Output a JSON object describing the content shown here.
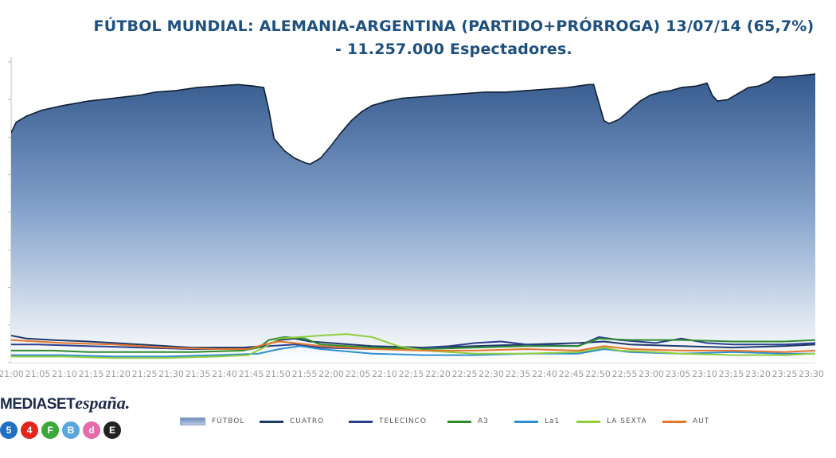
{
  "title_line1": "FÚTBOL MUNDIAL: ALEMANIA-ARGENTINA (PARTIDO+PRÓRROGA) 13/07/14 (65,7%)",
  "title_line2": "- 11.257.000 Espectadores.",
  "logo": {
    "part1": "MEDIASET",
    "part2": "españa",
    "dot": "."
  },
  "channel_icons": [
    {
      "name": "cuatro-channel-icon",
      "glyph": "5",
      "color": "#1f6fc2"
    },
    {
      "name": "telecinco-channel-icon",
      "glyph": "4",
      "color": "#e2261e"
    },
    {
      "name": "factoria-channel-icon",
      "glyph": "F",
      "color": "#3aa83a"
    },
    {
      "name": "boing-channel-icon",
      "glyph": "B",
      "color": "#5aa7dd"
    },
    {
      "name": "divinity-channel-icon",
      "glyph": "d",
      "color": "#e66aa8"
    },
    {
      "name": "energy-channel-icon",
      "glyph": "E",
      "color": "#222222"
    }
  ],
  "chart_data": {
    "type": "area",
    "title": "FÚTBOL MUNDIAL: ALEMANIA-ARGENTINA (PARTIDO+PRÓRROGA) 13/07/14 (65,7%) - 11.257.000 Espectadores.",
    "x_tick_labels": [
      "21:00",
      "21:05",
      "21:10",
      "21:15",
      "21:20",
      "21:25",
      "21:30",
      "21:35",
      "21:40",
      "21:45",
      "21:50",
      "21:55",
      "22:00",
      "22:05",
      "22:10",
      "22:15",
      "22:20",
      "22:25",
      "22:30",
      "22:35",
      "22:40",
      "22:45",
      "22:50",
      "22:55",
      "23:00",
      "23:05",
      "23:10",
      "23:15",
      "23:20",
      "23:25",
      "23:30"
    ],
    "x_range": [
      0,
      156
    ],
    "y_range": [
      0,
      20
    ],
    "y_tick_count": 9,
    "grid": false,
    "legend_position": "bottom",
    "series": [
      {
        "name": "FÚTBOL",
        "color": "#34598c",
        "style": "area",
        "points": [
          [
            0,
            15.3
          ],
          [
            1,
            16.0
          ],
          [
            3,
            16.4
          ],
          [
            6,
            16.8
          ],
          [
            10,
            17.1
          ],
          [
            15,
            17.4
          ],
          [
            20,
            17.6
          ],
          [
            25,
            17.8
          ],
          [
            28,
            18.0
          ],
          [
            32,
            18.1
          ],
          [
            36,
            18.3
          ],
          [
            40,
            18.4
          ],
          [
            44,
            18.5
          ],
          [
            47,
            18.4
          ],
          [
            49,
            18.3
          ],
          [
            50,
            16.8
          ],
          [
            51,
            14.9
          ],
          [
            53,
            14.1
          ],
          [
            55,
            13.6
          ],
          [
            57,
            13.3
          ],
          [
            58,
            13.2
          ],
          [
            60,
            13.6
          ],
          [
            62,
            14.4
          ],
          [
            64,
            15.3
          ],
          [
            66,
            16.1
          ],
          [
            68,
            16.7
          ],
          [
            70,
            17.1
          ],
          [
            73,
            17.4
          ],
          [
            76,
            17.6
          ],
          [
            80,
            17.7
          ],
          [
            84,
            17.8
          ],
          [
            88,
            17.9
          ],
          [
            92,
            18.0
          ],
          [
            96,
            18.0
          ],
          [
            100,
            18.1
          ],
          [
            104,
            18.2
          ],
          [
            108,
            18.3
          ],
          [
            112,
            18.5
          ],
          [
            113,
            18.5
          ],
          [
            114,
            17.3
          ],
          [
            115,
            16.1
          ],
          [
            116,
            15.9
          ],
          [
            118,
            16.2
          ],
          [
            120,
            16.8
          ],
          [
            122,
            17.4
          ],
          [
            124,
            17.8
          ],
          [
            126,
            18.0
          ],
          [
            128,
            18.1
          ],
          [
            130,
            18.3
          ],
          [
            133,
            18.4
          ],
          [
            135,
            18.6
          ],
          [
            136,
            17.8
          ],
          [
            137,
            17.4
          ],
          [
            139,
            17.5
          ],
          [
            141,
            17.9
          ],
          [
            143,
            18.3
          ],
          [
            145,
            18.4
          ],
          [
            147,
            18.7
          ],
          [
            148,
            19.0
          ],
          [
            150,
            19.0
          ],
          [
            153,
            19.1
          ],
          [
            156,
            19.2
          ]
        ]
      },
      {
        "name": "CUATRO",
        "color": "#1f3a6b",
        "style": "line",
        "points": [
          [
            0,
            1.8
          ],
          [
            3,
            1.6
          ],
          [
            8,
            1.5
          ],
          [
            15,
            1.4
          ],
          [
            25,
            1.2
          ],
          [
            35,
            1.0
          ],
          [
            45,
            1.0
          ],
          [
            49,
            1.1
          ],
          [
            52,
            1.5
          ],
          [
            55,
            1.6
          ],
          [
            58,
            1.4
          ],
          [
            62,
            1.3
          ],
          [
            70,
            1.1
          ],
          [
            80,
            1.0
          ],
          [
            90,
            1.1
          ],
          [
            100,
            1.2
          ],
          [
            110,
            1.3
          ],
          [
            115,
            1.4
          ],
          [
            120,
            1.2
          ],
          [
            130,
            1.1
          ],
          [
            140,
            1.0
          ],
          [
            150,
            1.1
          ],
          [
            156,
            1.2
          ]
        ]
      },
      {
        "name": "TELECINCO",
        "color": "#2b3f8f",
        "style": "line",
        "points": [
          [
            0,
            1.2
          ],
          [
            5,
            1.2
          ],
          [
            15,
            1.1
          ],
          [
            25,
            1.0
          ],
          [
            35,
            0.9
          ],
          [
            45,
            0.9
          ],
          [
            50,
            1.1
          ],
          [
            55,
            1.2
          ],
          [
            60,
            1.0
          ],
          [
            70,
            0.9
          ],
          [
            80,
            1.0
          ],
          [
            85,
            1.1
          ],
          [
            90,
            1.3
          ],
          [
            95,
            1.4
          ],
          [
            100,
            1.2
          ],
          [
            110,
            1.1
          ],
          [
            114,
            1.7
          ],
          [
            118,
            1.5
          ],
          [
            125,
            1.3
          ],
          [
            130,
            1.6
          ],
          [
            135,
            1.3
          ],
          [
            140,
            1.2
          ],
          [
            150,
            1.2
          ],
          [
            156,
            1.3
          ]
        ]
      },
      {
        "name": "A3",
        "color": "#2e8b2e",
        "style": "line",
        "points": [
          [
            0,
            0.8
          ],
          [
            8,
            0.8
          ],
          [
            15,
            0.7
          ],
          [
            25,
            0.7
          ],
          [
            35,
            0.7
          ],
          [
            45,
            0.8
          ],
          [
            48,
            1.0
          ],
          [
            50,
            1.5
          ],
          [
            53,
            1.7
          ],
          [
            57,
            1.6
          ],
          [
            60,
            1.2
          ],
          [
            70,
            1.0
          ],
          [
            80,
            0.9
          ],
          [
            90,
            1.0
          ],
          [
            100,
            1.1
          ],
          [
            110,
            1.1
          ],
          [
            114,
            1.6
          ],
          [
            120,
            1.5
          ],
          [
            130,
            1.5
          ],
          [
            140,
            1.4
          ],
          [
            150,
            1.4
          ],
          [
            156,
            1.5
          ]
        ]
      },
      {
        "name": "La1",
        "color": "#2e8fcf",
        "style": "line",
        "points": [
          [
            0,
            0.5
          ],
          [
            10,
            0.5
          ],
          [
            20,
            0.4
          ],
          [
            30,
            0.4
          ],
          [
            40,
            0.5
          ],
          [
            48,
            0.6
          ],
          [
            52,
            0.9
          ],
          [
            56,
            1.1
          ],
          [
            60,
            0.9
          ],
          [
            70,
            0.6
          ],
          [
            80,
            0.5
          ],
          [
            90,
            0.5
          ],
          [
            100,
            0.6
          ],
          [
            110,
            0.6
          ],
          [
            115,
            0.9
          ],
          [
            120,
            0.7
          ],
          [
            130,
            0.6
          ],
          [
            140,
            0.7
          ],
          [
            150,
            0.6
          ],
          [
            156,
            0.6
          ]
        ]
      },
      {
        "name": "LA SEXTA",
        "color": "#8fce3c",
        "style": "line",
        "points": [
          [
            0,
            0.4
          ],
          [
            10,
            0.4
          ],
          [
            20,
            0.3
          ],
          [
            30,
            0.3
          ],
          [
            40,
            0.4
          ],
          [
            46,
            0.5
          ],
          [
            49,
            1.0
          ],
          [
            52,
            1.6
          ],
          [
            56,
            1.7
          ],
          [
            60,
            1.8
          ],
          [
            65,
            1.9
          ],
          [
            70,
            1.7
          ],
          [
            75,
            1.1
          ],
          [
            80,
            0.8
          ],
          [
            90,
            0.6
          ],
          [
            100,
            0.6
          ],
          [
            110,
            0.7
          ],
          [
            115,
            1.0
          ],
          [
            118,
            0.8
          ],
          [
            125,
            0.7
          ],
          [
            130,
            0.6
          ],
          [
            140,
            0.5
          ],
          [
            150,
            0.5
          ],
          [
            156,
            0.6
          ]
        ]
      },
      {
        "name": "AUT",
        "color": "#e5762b",
        "style": "line",
        "points": [
          [
            0,
            1.5
          ],
          [
            5,
            1.4
          ],
          [
            10,
            1.3
          ],
          [
            20,
            1.2
          ],
          [
            30,
            1.0
          ],
          [
            40,
            0.9
          ],
          [
            46,
            0.9
          ],
          [
            49,
            1.2
          ],
          [
            52,
            1.4
          ],
          [
            55,
            1.3
          ],
          [
            60,
            1.1
          ],
          [
            70,
            0.9
          ],
          [
            80,
            0.8
          ],
          [
            90,
            0.8
          ],
          [
            100,
            0.9
          ],
          [
            110,
            0.8
          ],
          [
            115,
            1.1
          ],
          [
            120,
            0.9
          ],
          [
            130,
            0.8
          ],
          [
            140,
            0.8
          ],
          [
            150,
            0.7
          ],
          [
            156,
            0.8
          ]
        ]
      }
    ]
  }
}
